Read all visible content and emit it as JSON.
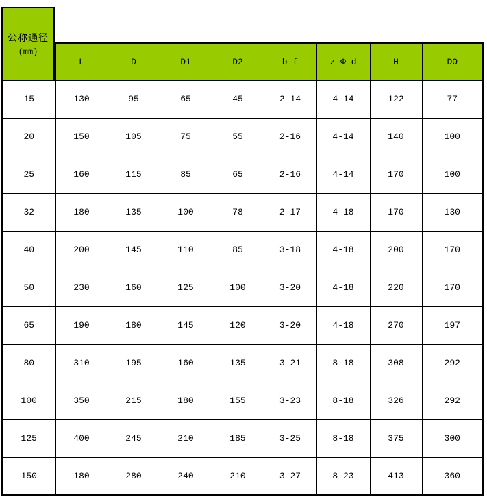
{
  "chart_data": {
    "type": "table",
    "corner_header": {
      "line1": "公称通径",
      "line2": "(mm)"
    },
    "columns": [
      "L",
      "D",
      "D1",
      "D2",
      "b-f",
      "z-Φ d",
      "H",
      "DO"
    ],
    "rows": [
      [
        "15",
        "130",
        "95",
        "65",
        "45",
        "2-14",
        "4-14",
        "122",
        "77"
      ],
      [
        "20",
        "150",
        "105",
        "75",
        "55",
        "2-16",
        "4-14",
        "140",
        "100"
      ],
      [
        "25",
        "160",
        "115",
        "85",
        "65",
        "2-16",
        "4-14",
        "170",
        "100"
      ],
      [
        "32",
        "180",
        "135",
        "100",
        "78",
        "2-17",
        "4-18",
        "170",
        "130"
      ],
      [
        "40",
        "200",
        "145",
        "110",
        "85",
        "3-18",
        "4-18",
        "200",
        "170"
      ],
      [
        "50",
        "230",
        "160",
        "125",
        "100",
        "3-20",
        "4-18",
        "220",
        "170"
      ],
      [
        "65",
        "190",
        "180",
        "145",
        "120",
        "3-20",
        "4-18",
        "270",
        "197"
      ],
      [
        "80",
        "310",
        "195",
        "160",
        "135",
        "3-21",
        "8-18",
        "308",
        "292"
      ],
      [
        "100",
        "350",
        "215",
        "180",
        "155",
        "3-23",
        "8-18",
        "326",
        "292"
      ],
      [
        "125",
        "400",
        "245",
        "210",
        "185",
        "3-25",
        "8-18",
        "375",
        "300"
      ],
      [
        "150",
        "180",
        "280",
        "240",
        "210",
        "3-27",
        "8-23",
        "413",
        "360"
      ]
    ]
  },
  "colors": {
    "header_bg": "#99CC00",
    "border": "#000000",
    "text": "#000000",
    "background": "#FFFFFF"
  }
}
